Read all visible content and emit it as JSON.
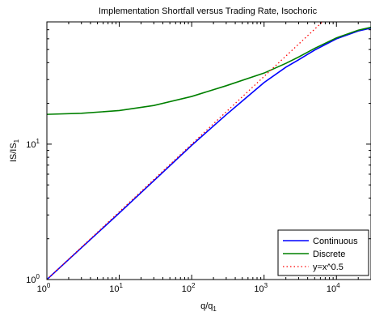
{
  "chart_data": {
    "type": "line",
    "title": "Implementation Shortfall versus Trading Rate, Isochoric",
    "xlabel": {
      "base": "q/q",
      "subscript": "1"
    },
    "ylabel": {
      "base": "IS/IS",
      "subscript": "1"
    },
    "xscale": "log",
    "yscale": "log",
    "xlim": [
      1,
      30000
    ],
    "ylim": [
      1,
      80
    ],
    "grid": false,
    "legend_position": "bottom-right",
    "x_ticks": [
      {
        "base": "10",
        "exp": "0"
      },
      {
        "base": "10",
        "exp": "1"
      },
      {
        "base": "10",
        "exp": "2"
      },
      {
        "base": "10",
        "exp": "3"
      },
      {
        "base": "10",
        "exp": "4"
      }
    ],
    "y_ticks": [
      {
        "base": "10",
        "exp": "0"
      },
      {
        "base": "10",
        "exp": "1"
      }
    ],
    "series": [
      {
        "name": "Continuous",
        "color": "#0000ff",
        "style": "solid",
        "x": [
          1,
          10,
          100,
          300,
          1000,
          2000,
          3000,
          5000,
          10000,
          20000,
          30000
        ],
        "y": [
          1,
          3.1,
          9.8,
          16.5,
          28.5,
          37.0,
          42.0,
          49.5,
          60.0,
          68.5,
          72.0
        ]
      },
      {
        "name": "Discrete",
        "color": "#008000",
        "style": "solid",
        "x": [
          1,
          3,
          10,
          30,
          100,
          300,
          1000,
          2000,
          3000,
          5000,
          10000,
          20000,
          30000
        ],
        "y": [
          16.6,
          16.9,
          17.7,
          19.3,
          22.5,
          27.0,
          33.5,
          39.5,
          44.0,
          51.0,
          61.0,
          69.5,
          73.0
        ]
      },
      {
        "name": "y=x^0.5",
        "color": "#ff0000",
        "style": "dotted",
        "x": [
          1,
          30000
        ],
        "y": [
          1,
          173.2
        ]
      }
    ]
  }
}
